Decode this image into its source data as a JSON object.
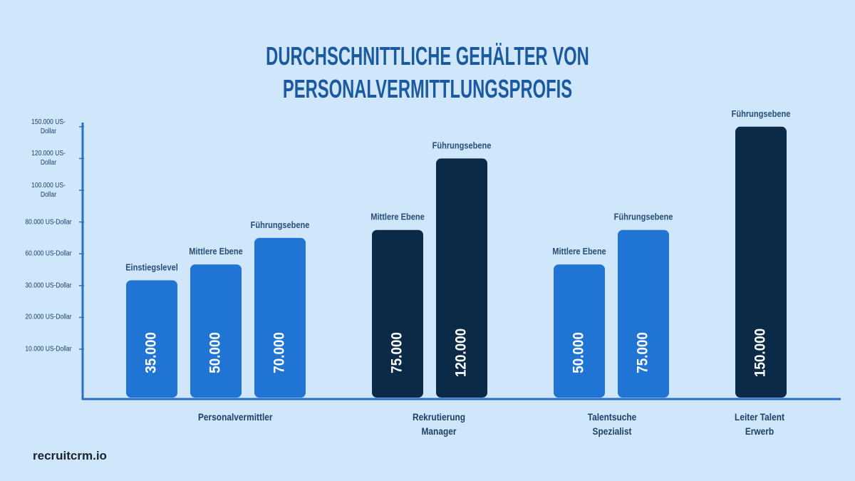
{
  "chart_data": {
    "type": "bar",
    "title": "DURCHSCHNITTLICHE GEHÄLTER VON PERSONALVERMITTLUNGSPROFIS",
    "yticks": [
      {
        "value": 10000,
        "label": "10.000 US-Dollar"
      },
      {
        "value": 20000,
        "label": "20.000 US-Dollar"
      },
      {
        "value": 30000,
        "label": "30.000 US-Dollar"
      },
      {
        "value": 60000,
        "label": "60.000 US-Dollar"
      },
      {
        "value": 80000,
        "label": "80.000 US-Dollar"
      },
      {
        "value": 100000,
        "label": "100.000 US-Dollar"
      },
      {
        "value": 120000,
        "label": "120.000 US-Dollar"
      },
      {
        "value": 150000,
        "label": "150.000 US-Dollar"
      }
    ],
    "groups": [
      {
        "name": "Personalvermittler",
        "levels": [
          "Einstiegslevel",
          "Mittlere Ebene",
          "Führungsebene"
        ],
        "values": [
          35000,
          50000,
          70000
        ],
        "value_labels": [
          "35.000",
          "50.000",
          "70.000"
        ],
        "colors": [
          "#1f74d4",
          "#1f74d4",
          "#1f74d4"
        ]
      },
      {
        "name": "Rekrutierung Manager",
        "levels": [
          "Mittlere Ebene",
          "Führungsebene"
        ],
        "values": [
          75000,
          120000
        ],
        "value_labels": [
          "75.000",
          "120.000"
        ],
        "colors": [
          "#0b2a48",
          "#0b2a48"
        ]
      },
      {
        "name": "Talentsuche Spezialist",
        "levels": [
          "Mittlere Ebene",
          "Führungsebene"
        ],
        "values": [
          50000,
          75000
        ],
        "value_labels": [
          "50.000",
          "75.000"
        ],
        "colors": [
          "#1f74d4",
          "#1f74d4"
        ]
      },
      {
        "name": "Leiter Talent Erwerb",
        "levels": [
          "Führungsebene"
        ],
        "values": [
          150000
        ],
        "value_labels": [
          "150.000"
        ],
        "colors": [
          "#0b2a48"
        ]
      }
    ],
    "footer": "recruitcrm.io"
  }
}
